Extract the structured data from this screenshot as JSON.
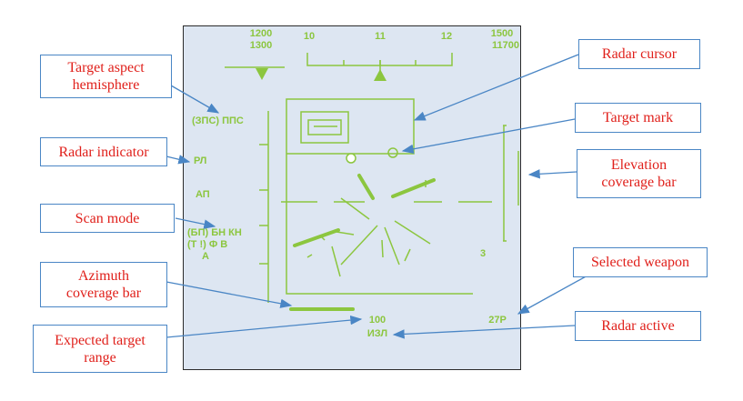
{
  "colors": {
    "hud_symbology": "#8cc63f",
    "hud_background": "#dde6f2",
    "callout_text": "#e0201b",
    "callout_border": "#4a86c5"
  },
  "hud": {
    "left_readout": [
      "1200",
      "1300"
    ],
    "right_readout": [
      "1500",
      "11700"
    ],
    "heading_scale": [
      "10",
      "11",
      "12"
    ],
    "aspect_hemisphere": "(ЗПС) ППС",
    "radar_indicator": "РЛ",
    "autopilot": "АП",
    "scan_mode": [
      "(БП) БН КН",
      "(Т !) Ф В",
      "А"
    ],
    "number_3": "3",
    "selected_weapon": "27Р",
    "expected_range": "100",
    "radar_active": "ИЗЛ"
  },
  "callouts": {
    "target_aspect": [
      "Target aspect",
      "hemisphere"
    ],
    "radar_indicator": [
      "Radar indicator"
    ],
    "scan_mode": [
      "Scan mode"
    ],
    "azimuth_bar": [
      "Azimuth",
      "coverage bar"
    ],
    "expected_range": [
      "Expected target",
      "range"
    ],
    "radar_cursor": [
      "Radar cursor"
    ],
    "target_mark": [
      "Target mark"
    ],
    "elevation_bar": [
      "Elevation",
      "coverage bar"
    ],
    "selected_weapon": [
      "Selected weapon"
    ],
    "radar_active": [
      "Radar active"
    ]
  }
}
